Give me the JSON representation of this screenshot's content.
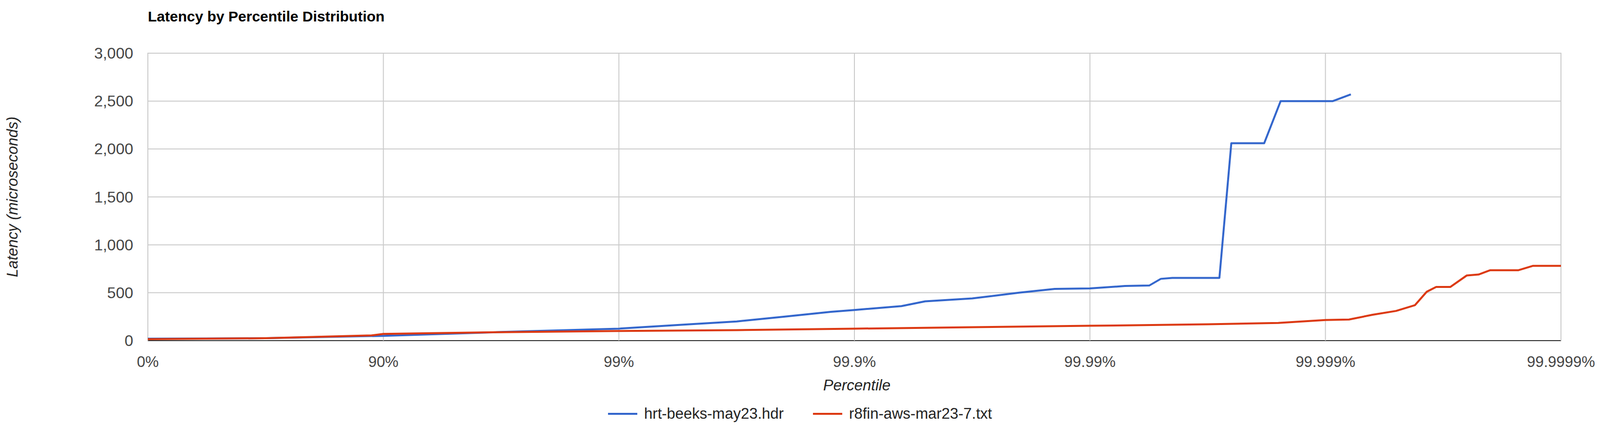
{
  "chart_data": {
    "type": "line",
    "title": "Latency by Percentile Distribution",
    "x_label": "Percentile",
    "y_label": "Latency (microseconds)",
    "xlim": [
      0,
      99.9999
    ],
    "xticks": [
      {
        "value": 0,
        "label": "0%"
      },
      {
        "value": 90,
        "label": "90%"
      },
      {
        "value": 99,
        "label": "99%"
      },
      {
        "value": 99.9,
        "label": "99.9%"
      },
      {
        "value": 99.99,
        "label": "99.99%"
      },
      {
        "value": 99.999,
        "label": "99.999%"
      },
      {
        "value": 99.9999,
        "label": "99.9999%"
      }
    ],
    "ylim": [
      0,
      3000
    ],
    "yticks": [
      0,
      500,
      {
        "value": 1000,
        "label": "1,000"
      },
      {
        "value": 1500,
        "label": "1,500"
      },
      {
        "value": 2000,
        "label": "2,000"
      },
      {
        "value": 2500,
        "label": "2,500"
      },
      {
        "value": 3000,
        "label": "3,000"
      }
    ],
    "grid": true,
    "legend": "bottom",
    "series": [
      {
        "name": "hrt-beeks-may23.hdr",
        "color": "#3366cc",
        "x": [
          0,
          68.38,
          90,
          96.84,
          99,
          99.4988,
          99.6838,
          99.8005,
          99.8741,
          99.9,
          99.9369,
          99.9499,
          99.9684,
          99.98,
          99.9859,
          99.99,
          99.9929,
          99.9944,
          99.995,
          99.99553,
          99.99718,
          99.99749,
          99.99818,
          99.99845,
          99.99907,
          99.99922
        ],
        "values": [
          20,
          25,
          50,
          90,
          125,
          170,
          200,
          250,
          300,
          320,
          360,
          410,
          440,
          500,
          540,
          545,
          570,
          575,
          645,
          655,
          655,
          2060,
          2060,
          2500,
          2500,
          2570
        ]
      },
      {
        "name": "r8fin-aws-mar23-7.txt",
        "color": "#dc3912",
        "x": [
          0,
          68.38,
          88.78,
          90,
          93.69,
          96.84,
          99,
          99.6838,
          99.9,
          99.9684,
          99.99,
          99.99684,
          99.998415,
          99.999,
          99.9992057,
          99.999369,
          99.9994988,
          99.9995831,
          99.9996285,
          99.9996612,
          99.9997049,
          99.9997488,
          99.9997761,
          99.9998005,
          99.9998486,
          99.9998682,
          99.9999
        ],
        "values": [
          15,
          25,
          55,
          70,
          78,
          88,
          100,
          110,
          125,
          140,
          155,
          170,
          185,
          215,
          220,
          270,
          310,
          370,
          510,
          560,
          560,
          680,
          690,
          735,
          735,
          780,
          780
        ]
      }
    ]
  }
}
